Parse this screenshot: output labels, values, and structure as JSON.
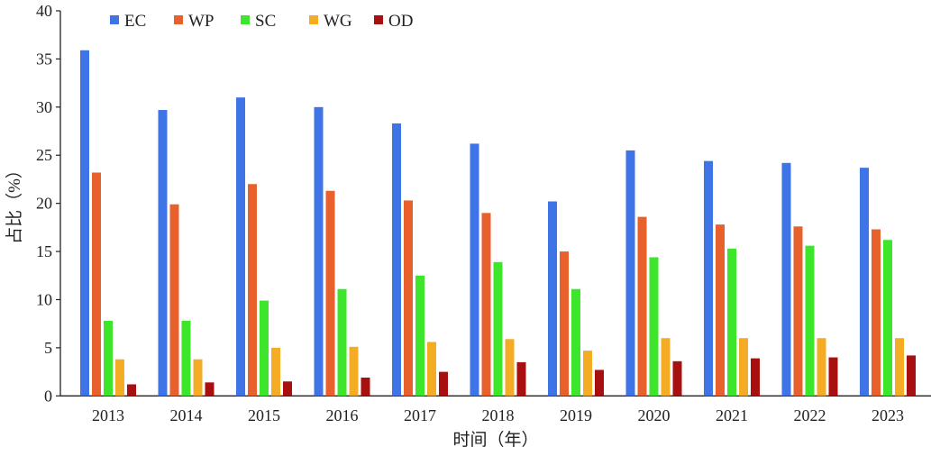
{
  "chart_data": {
    "type": "bar",
    "title": "",
    "xlabel": "时间（年）",
    "ylabel": "占比（%）",
    "ylim": [
      0,
      40
    ],
    "yticks": [
      0,
      5,
      10,
      15,
      20,
      25,
      30,
      35,
      40
    ],
    "grid": false,
    "legend_position": "top-left",
    "categories": [
      "2013",
      "2014",
      "2015",
      "2016",
      "2017",
      "2018",
      "2019",
      "2020",
      "2021",
      "2022",
      "2023"
    ],
    "series": [
      {
        "name": "EC",
        "color": "#3f74e6",
        "values": [
          35.9,
          29.7,
          31.0,
          30.0,
          28.3,
          26.2,
          20.2,
          25.5,
          24.4,
          24.2,
          23.7
        ]
      },
      {
        "name": "WP",
        "color": "#e8612c",
        "values": [
          23.2,
          19.9,
          22.0,
          21.3,
          20.3,
          19.0,
          15.0,
          18.6,
          17.8,
          17.6,
          17.3
        ]
      },
      {
        "name": "SC",
        "color": "#3ee62b",
        "values": [
          7.8,
          7.8,
          9.9,
          11.1,
          12.5,
          13.9,
          11.1,
          14.4,
          15.3,
          15.6,
          16.2
        ]
      },
      {
        "name": "WG",
        "color": "#f5ac25",
        "values": [
          3.8,
          3.8,
          5.0,
          5.1,
          5.6,
          5.9,
          4.7,
          6.0,
          6.0,
          6.0,
          6.0
        ]
      },
      {
        "name": "OD",
        "color": "#a80f0f",
        "values": [
          1.2,
          1.4,
          1.5,
          1.9,
          2.5,
          3.5,
          2.7,
          3.6,
          3.9,
          4.0,
          4.2
        ]
      }
    ]
  }
}
